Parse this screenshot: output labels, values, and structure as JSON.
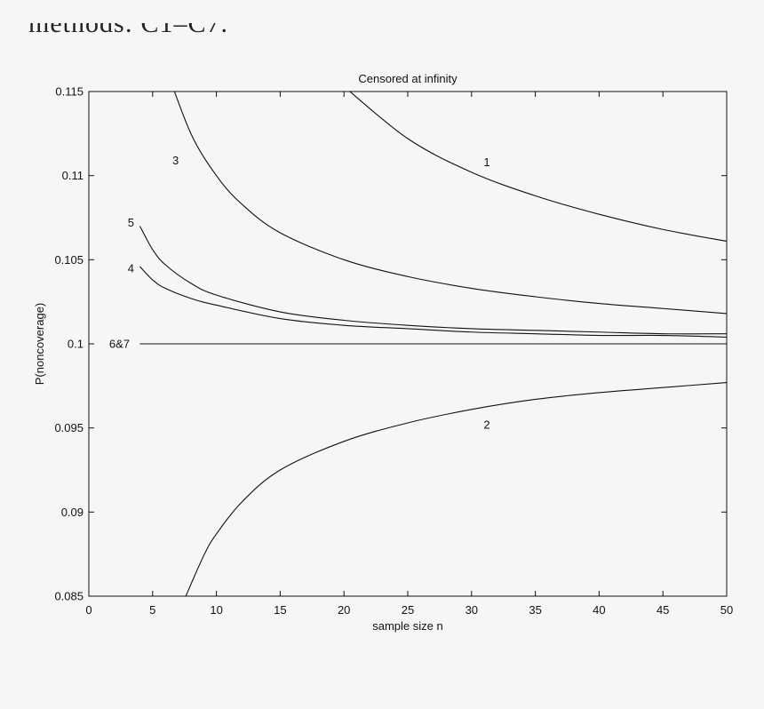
{
  "page": {
    "cropped_text": "methods: C1–C7."
  },
  "chart_data": {
    "type": "line",
    "title": "Censored at infinity",
    "xlabel": "sample size n",
    "ylabel": "P(noncoverage)",
    "xlim": [
      0,
      50
    ],
    "ylim": [
      0.085,
      0.115
    ],
    "xticks": [
      0,
      5,
      10,
      15,
      20,
      25,
      30,
      35,
      40,
      45,
      50
    ],
    "yticks": [
      0.085,
      0.09,
      0.095,
      0.1,
      0.105,
      0.11,
      0.115
    ],
    "ytick_labels": [
      "0.085",
      "0.09",
      "0.095",
      "0.1",
      "0.105",
      "0.11",
      "0.115"
    ],
    "grid": false,
    "legend": "none",
    "series": [
      {
        "name": "1",
        "x": [
          20,
          25,
          30,
          35,
          40,
          45,
          50
        ],
        "y": [
          0.1153,
          0.1122,
          0.1102,
          0.1088,
          0.1077,
          0.1068,
          0.1061
        ],
        "label_at": [
          31.2,
          0.1108
        ]
      },
      {
        "name": "3",
        "x": [
          6,
          8,
          10,
          12,
          15,
          20,
          25,
          30,
          35,
          40,
          45,
          50
        ],
        "y": [
          0.1165,
          0.1125,
          0.11,
          0.1083,
          0.1066,
          0.105,
          0.104,
          0.1033,
          0.1028,
          0.1024,
          0.1021,
          0.1018
        ],
        "label_at": [
          6.8,
          0.1109
        ]
      },
      {
        "name": "5",
        "x": [
          4,
          5,
          6,
          8,
          10,
          15,
          20,
          25,
          30,
          35,
          40,
          45,
          50
        ],
        "y": [
          0.107,
          0.1056,
          0.1047,
          0.1036,
          0.1029,
          0.1019,
          0.1014,
          0.1011,
          0.1009,
          0.1008,
          0.1007,
          0.1006,
          0.1006
        ],
        "label_at": [
          3.3,
          0.1072
        ]
      },
      {
        "name": "4",
        "x": [
          4,
          5,
          6,
          8,
          10,
          15,
          20,
          25,
          30,
          35,
          40,
          45,
          50
        ],
        "y": [
          0.1046,
          0.1038,
          0.1033,
          0.1027,
          0.1023,
          0.1015,
          0.1011,
          0.1009,
          0.1007,
          0.1006,
          0.1005,
          0.1005,
          0.1004
        ],
        "label_at": [
          3.3,
          0.1045
        ]
      },
      {
        "name": "6&7",
        "x": [
          4,
          50
        ],
        "y": [
          0.1,
          0.1
        ],
        "label_at": [
          2.4,
          0.1
        ]
      },
      {
        "name": "2",
        "x": [
          7.6,
          9,
          10,
          12,
          15,
          20,
          25,
          30,
          35,
          40,
          45,
          50
        ],
        "y": [
          0.085,
          0.0874,
          0.0887,
          0.0906,
          0.0925,
          0.0942,
          0.0953,
          0.0961,
          0.0967,
          0.0971,
          0.0974,
          0.0977
        ],
        "label_at": [
          31.2,
          0.0952
        ]
      }
    ]
  }
}
